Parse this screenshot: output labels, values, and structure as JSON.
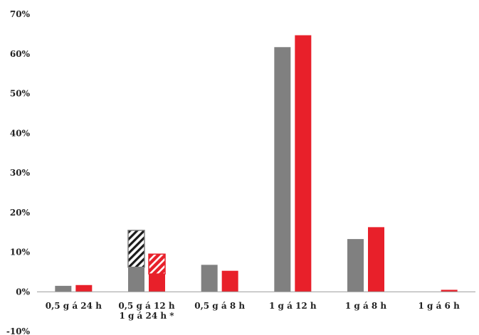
{
  "chart_data": {
    "type": "bar",
    "title": "",
    "xlabel": "",
    "ylabel": "",
    "ylim": [
      -0.1,
      0.7
    ],
    "y_ticks": [
      {
        "value": -0.1,
        "label": "-10%"
      },
      {
        "value": 0.0,
        "label": "0%"
      },
      {
        "value": 0.1,
        "label": "10%"
      },
      {
        "value": 0.2,
        "label": "20%"
      },
      {
        "value": 0.3,
        "label": "30%"
      },
      {
        "value": 0.4,
        "label": "40%"
      },
      {
        "value": 0.5,
        "label": "50%"
      },
      {
        "value": 0.6,
        "label": "60%"
      },
      {
        "value": 0.7,
        "label": "70%"
      }
    ],
    "categories": [
      [
        "0,5 g á 24 h"
      ],
      [
        "0,5 g á 12 h",
        "1 g á 24 h *"
      ],
      [
        "0,5 g á 8 h"
      ],
      [
        "1 g á 12 h"
      ],
      [
        "1 g á 8 h"
      ],
      [
        "1 g á 6 h"
      ]
    ],
    "series": [
      {
        "color": "#808080",
        "values": [
          0.015,
          0.062,
          0.068,
          0.617,
          0.133,
          0.0
        ],
        "hatched_stack": [
          0.0,
          0.093,
          0.0,
          0.0,
          0.0,
          0.0
        ]
      },
      {
        "color": "#e8202a",
        "values": [
          0.017,
          0.045,
          0.053,
          0.647,
          0.163,
          0.005
        ],
        "hatched_stack": [
          0.0,
          0.05,
          0.0,
          0.0,
          0.0,
          0.0
        ]
      }
    ],
    "grid": false,
    "legend": "none"
  }
}
